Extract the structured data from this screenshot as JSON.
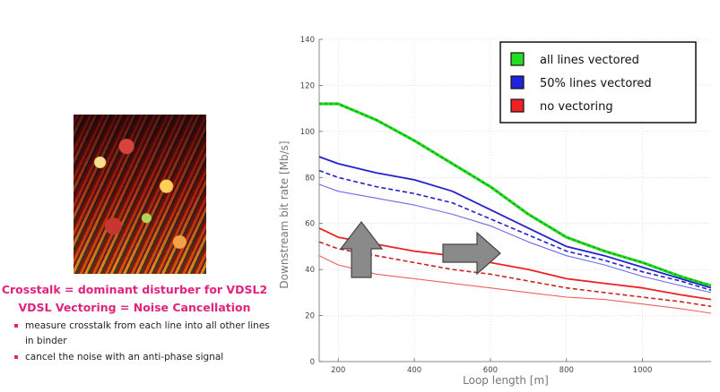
{
  "slide": {
    "heading1": "Crosstalk = dominant disturber for VDSL2",
    "heading2": "VDSL Vectoring = Noise Cancellation",
    "bullets": [
      "measure crosstalk from each line into all other lines in binder",
      "cancel the noise with an anti-phase signal"
    ]
  },
  "chart_data": {
    "type": "line",
    "xlabel": "Loop length [m]",
    "ylabel": "Downstream bit rate [Mb/s]",
    "xlim": [
      150,
      1180
    ],
    "ylim": [
      0,
      140
    ],
    "x_ticks": [
      200,
      400,
      600,
      800,
      1000
    ],
    "y_ticks": [
      0,
      20,
      40,
      60,
      80,
      100,
      120,
      140
    ],
    "legend": [
      {
        "label": "all lines vectored",
        "color": "#22dd22"
      },
      {
        "label": "50% lines vectored",
        "color": "#2222dd"
      },
      {
        "label": "no vectoring",
        "color": "#ee2222"
      }
    ],
    "series": [
      {
        "name": "all lines vectored",
        "group": 0,
        "style": "thick",
        "color": "#22dd22",
        "x": [
          150,
          200,
          300,
          400,
          500,
          600,
          700,
          800,
          900,
          1000,
          1100,
          1180
        ],
        "y": [
          112,
          112,
          105,
          96,
          86,
          76,
          64,
          54,
          48,
          43,
          37,
          33
        ]
      },
      {
        "name": "50% lines vectored (upper)",
        "group": 1,
        "style": "solid",
        "color": "#2222cc",
        "x": [
          150,
          200,
          300,
          400,
          500,
          600,
          700,
          800,
          900,
          1000,
          1100,
          1180
        ],
        "y": [
          89,
          86,
          82,
          79,
          74,
          66,
          58,
          50,
          46,
          41,
          36,
          32
        ]
      },
      {
        "name": "50% lines vectored (mid)",
        "group": 1,
        "style": "dashed",
        "color": "#2222cc",
        "x": [
          150,
          200,
          300,
          400,
          500,
          600,
          700,
          800,
          900,
          1000,
          1100,
          1180
        ],
        "y": [
          83,
          80,
          76,
          73,
          69,
          62,
          55,
          48,
          44,
          39,
          35,
          31
        ]
      },
      {
        "name": "50% lines vectored (lower)",
        "group": 1,
        "style": "thin",
        "color": "#6a6aee",
        "x": [
          150,
          200,
          300,
          400,
          500,
          600,
          700,
          800,
          900,
          1000,
          1100,
          1180
        ],
        "y": [
          77,
          74,
          71,
          68,
          64,
          59,
          52,
          46,
          42,
          37,
          33,
          30
        ]
      },
      {
        "name": "no vectoring (upper)",
        "group": 2,
        "style": "solid",
        "color": "#ee2222",
        "x": [
          150,
          200,
          300,
          400,
          500,
          600,
          700,
          800,
          900,
          1000,
          1100,
          1180
        ],
        "y": [
          58,
          54,
          51,
          48,
          46,
          43,
          40,
          36,
          34,
          32,
          29,
          27
        ]
      },
      {
        "name": "no vectoring (mid)",
        "group": 2,
        "style": "dashed",
        "color": "#cc2222",
        "x": [
          150,
          200,
          300,
          400,
          500,
          600,
          700,
          800,
          900,
          1000,
          1100,
          1180
        ],
        "y": [
          52,
          49,
          46,
          43,
          40,
          38,
          35,
          32,
          30,
          28,
          26,
          24
        ]
      },
      {
        "name": "no vectoring (lower)",
        "group": 2,
        "style": "thin",
        "color": "#f06060",
        "x": [
          150,
          200,
          300,
          400,
          500,
          600,
          700,
          800,
          900,
          1000,
          1100,
          1180
        ],
        "y": [
          46,
          42,
          38,
          36,
          34,
          32,
          30,
          28,
          27,
          25,
          23,
          21
        ]
      }
    ]
  }
}
